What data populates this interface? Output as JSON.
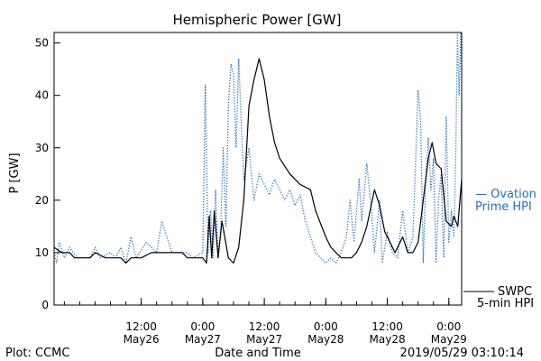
{
  "chart_data": {
    "type": "line",
    "title": "Hemispheric Power [GW]",
    "xlabel": "Date and Time",
    "ylabel": "P [GW]",
    "xlim": [
      "2019-05-25 19:00",
      "2019-05-29 02:30"
    ],
    "ylim": [
      0,
      52
    ],
    "y_ticks": [
      0,
      10,
      20,
      30,
      40,
      50
    ],
    "x_ticks": [
      {
        "t": "2019-05-26 12:00",
        "time": "12:00",
        "date": "May26"
      },
      {
        "t": "2019-05-27 00:00",
        "time": "0:00",
        "date": "May27"
      },
      {
        "t": "2019-05-27 12:00",
        "time": "12:00",
        "date": "May27"
      },
      {
        "t": "2019-05-28 00:00",
        "time": "0:00",
        "date": "May28"
      },
      {
        "t": "2019-05-28 12:00",
        "time": "12:00",
        "date": "May28"
      },
      {
        "t": "2019-05-29 00:00",
        "time": "0:00",
        "date": "May29"
      }
    ],
    "grid": false,
    "legend": [
      {
        "series": "Ovation Prime HPI",
        "line1": "— Ovation",
        "line2": "Prime HPI",
        "color": "#1f6fd1",
        "style": "dotted"
      },
      {
        "series": "SWPC 5-min HPI",
        "line1": "SWPC",
        "line2": "5-min HPI",
        "color": "#000000",
        "style": "solid"
      }
    ],
    "series": [
      {
        "name": "SWPC 5-min HPI",
        "color": "#000000",
        "style": "solid",
        "points": [
          [
            "2019-05-25 19:00",
            11
          ],
          [
            "2019-05-25 20:30",
            10
          ],
          [
            "2019-05-25 22:00",
            10
          ],
          [
            "2019-05-25 23:00",
            9
          ],
          [
            "2019-05-26 02:00",
            9
          ],
          [
            "2019-05-26 03:00",
            10
          ],
          [
            "2019-05-26 05:00",
            9
          ],
          [
            "2019-05-26 08:00",
            9
          ],
          [
            "2019-05-26 09:00",
            8
          ],
          [
            "2019-05-26 10:00",
            9
          ],
          [
            "2019-05-26 12:00",
            9
          ],
          [
            "2019-05-26 14:00",
            10
          ],
          [
            "2019-05-26 20:00",
            10
          ],
          [
            "2019-05-26 21:00",
            9
          ],
          [
            "2019-05-27 00:00",
            9
          ],
          [
            "2019-05-27 00:45",
            8
          ],
          [
            "2019-05-27 01:15",
            17
          ],
          [
            "2019-05-27 01:45",
            9
          ],
          [
            "2019-05-27 02:15",
            18
          ],
          [
            "2019-05-27 03:00",
            9
          ],
          [
            "2019-05-27 03:45",
            16
          ],
          [
            "2019-05-27 05:00",
            9
          ],
          [
            "2019-05-27 06:00",
            8
          ],
          [
            "2019-05-27 07:00",
            11
          ],
          [
            "2019-05-27 08:00",
            20
          ],
          [
            "2019-05-27 09:00",
            38
          ],
          [
            "2019-05-27 10:00",
            43
          ],
          [
            "2019-05-27 11:00",
            47
          ],
          [
            "2019-05-27 12:00",
            43
          ],
          [
            "2019-05-27 13:00",
            36
          ],
          [
            "2019-05-27 14:00",
            31
          ],
          [
            "2019-05-27 15:00",
            28
          ],
          [
            "2019-05-27 17:00",
            25
          ],
          [
            "2019-05-27 19:00",
            23
          ],
          [
            "2019-05-27 21:00",
            22
          ],
          [
            "2019-05-27 22:00",
            18
          ],
          [
            "2019-05-28 00:00",
            13
          ],
          [
            "2019-05-28 01:00",
            11
          ],
          [
            "2019-05-28 02:00",
            10
          ],
          [
            "2019-05-28 03:00",
            9
          ],
          [
            "2019-05-28 05:00",
            9
          ],
          [
            "2019-05-28 06:00",
            10
          ],
          [
            "2019-05-28 07:00",
            12
          ],
          [
            "2019-05-28 08:00",
            15
          ],
          [
            "2019-05-28 09:30",
            22
          ],
          [
            "2019-05-28 10:30",
            19
          ],
          [
            "2019-05-28 11:30",
            14
          ],
          [
            "2019-05-28 12:30",
            12
          ],
          [
            "2019-05-28 13:30",
            10
          ],
          [
            "2019-05-28 15:00",
            13
          ],
          [
            "2019-05-28 16:00",
            10
          ],
          [
            "2019-05-28 17:00",
            10
          ],
          [
            "2019-05-28 18:00",
            12
          ],
          [
            "2019-05-28 19:00",
            20
          ],
          [
            "2019-05-28 20:00",
            28
          ],
          [
            "2019-05-28 20:45",
            31
          ],
          [
            "2019-05-28 21:30",
            27
          ],
          [
            "2019-05-28 22:30",
            26
          ],
          [
            "2019-05-28 23:30",
            16
          ],
          [
            "2019-05-29 00:30",
            15
          ],
          [
            "2019-05-29 01:00",
            17
          ],
          [
            "2019-05-29 01:45",
            15
          ],
          [
            "2019-05-29 02:30",
            24
          ]
        ]
      },
      {
        "name": "Ovation Prime HPI",
        "color": "#1f6fd1",
        "style": "dotted",
        "points": [
          [
            "2019-05-25 19:00",
            10
          ],
          [
            "2019-05-25 19:30",
            8
          ],
          [
            "2019-05-25 20:00",
            12
          ],
          [
            "2019-05-25 21:00",
            9
          ],
          [
            "2019-05-25 22:00",
            11
          ],
          [
            "2019-05-25 23:30",
            9
          ],
          [
            "2019-05-26 02:00",
            9
          ],
          [
            "2019-05-26 03:00",
            11
          ],
          [
            "2019-05-26 04:00",
            9
          ],
          [
            "2019-05-26 06:00",
            10
          ],
          [
            "2019-05-26 07:00",
            9
          ],
          [
            "2019-05-26 08:00",
            11
          ],
          [
            "2019-05-26 09:00",
            8
          ],
          [
            "2019-05-26 10:00",
            13
          ],
          [
            "2019-05-26 11:00",
            9
          ],
          [
            "2019-05-26 13:00",
            12
          ],
          [
            "2019-05-26 15:00",
            10
          ],
          [
            "2019-05-26 16:00",
            16
          ],
          [
            "2019-05-26 18:00",
            10
          ],
          [
            "2019-05-26 21:00",
            10
          ],
          [
            "2019-05-26 22:00",
            9
          ],
          [
            "2019-05-27 00:00",
            10
          ],
          [
            "2019-05-27 00:30",
            42
          ],
          [
            "2019-05-27 01:00",
            10
          ],
          [
            "2019-05-27 01:30",
            18
          ],
          [
            "2019-05-27 02:00",
            9
          ],
          [
            "2019-05-27 02:30",
            22
          ],
          [
            "2019-05-27 03:00",
            9
          ],
          [
            "2019-05-27 03:30",
            15
          ],
          [
            "2019-05-27 04:00",
            30
          ],
          [
            "2019-05-27 04:30",
            15
          ],
          [
            "2019-05-27 05:00",
            38
          ],
          [
            "2019-05-27 05:30",
            46
          ],
          [
            "2019-05-27 06:00",
            44
          ],
          [
            "2019-05-27 06:30",
            30
          ],
          [
            "2019-05-27 07:00",
            47
          ],
          [
            "2019-05-27 07:30",
            35
          ],
          [
            "2019-05-27 08:00",
            24
          ],
          [
            "2019-05-27 09:00",
            30
          ],
          [
            "2019-05-27 10:00",
            20
          ],
          [
            "2019-05-27 11:00",
            25
          ],
          [
            "2019-05-27 12:00",
            23
          ],
          [
            "2019-05-27 13:00",
            21
          ],
          [
            "2019-05-27 14:00",
            24
          ],
          [
            "2019-05-27 15:00",
            22
          ],
          [
            "2019-05-27 16:00",
            20
          ],
          [
            "2019-05-27 17:00",
            22
          ],
          [
            "2019-05-27 18:00",
            19
          ],
          [
            "2019-05-27 19:00",
            21
          ],
          [
            "2019-05-27 20:00",
            16
          ],
          [
            "2019-05-27 21:00",
            13
          ],
          [
            "2019-05-27 22:00",
            10
          ],
          [
            "2019-05-27 23:00",
            9
          ],
          [
            "2019-05-28 00:00",
            8
          ],
          [
            "2019-05-28 01:00",
            9
          ],
          [
            "2019-05-28 02:00",
            8
          ],
          [
            "2019-05-28 03:00",
            10
          ],
          [
            "2019-05-28 04:00",
            13
          ],
          [
            "2019-05-28 04:45",
            20
          ],
          [
            "2019-05-28 05:30",
            12
          ],
          [
            "2019-05-28 06:30",
            24
          ],
          [
            "2019-05-28 07:00",
            16
          ],
          [
            "2019-05-28 08:00",
            27
          ],
          [
            "2019-05-28 09:00",
            17
          ],
          [
            "2019-05-28 09:30",
            10
          ],
          [
            "2019-05-28 10:30",
            20
          ],
          [
            "2019-05-28 11:00",
            8
          ],
          [
            "2019-05-28 12:00",
            14
          ],
          [
            "2019-05-28 13:00",
            10
          ],
          [
            "2019-05-28 14:00",
            9
          ],
          [
            "2019-05-28 15:00",
            18
          ],
          [
            "2019-05-28 16:00",
            10
          ],
          [
            "2019-05-28 17:00",
            13
          ],
          [
            "2019-05-28 18:00",
            41
          ],
          [
            "2019-05-28 18:30",
            35
          ],
          [
            "2019-05-28 19:00",
            8
          ],
          [
            "2019-05-28 19:30",
            24
          ],
          [
            "2019-05-28 20:00",
            32
          ],
          [
            "2019-05-28 20:30",
            22
          ],
          [
            "2019-05-28 21:00",
            28
          ],
          [
            "2019-05-28 21:30",
            8
          ],
          [
            "2019-05-28 22:00",
            20
          ],
          [
            "2019-05-28 22:30",
            25
          ],
          [
            "2019-05-28 23:00",
            9
          ],
          [
            "2019-05-28 23:30",
            36
          ],
          [
            "2019-05-29 00:00",
            12
          ],
          [
            "2019-05-29 00:30",
            18
          ],
          [
            "2019-05-29 01:00",
            13
          ],
          [
            "2019-05-29 01:20",
            28
          ],
          [
            "2019-05-29 01:40",
            52
          ],
          [
            "2019-05-29 02:00",
            40
          ],
          [
            "2019-05-29 02:20",
            52
          ],
          [
            "2019-05-29 02:30",
            45
          ]
        ]
      }
    ]
  },
  "footer": {
    "left": "Plot: CCMC",
    "center": "Date and Time",
    "right": "2019/05/29 03:10:14"
  }
}
